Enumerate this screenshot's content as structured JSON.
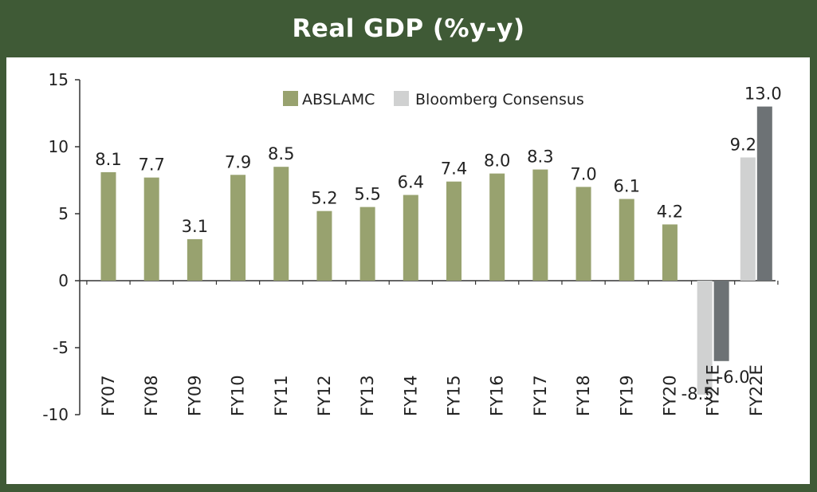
{
  "chart_data": {
    "type": "bar",
    "title": "Real GDP (%y-y)",
    "categories": [
      "FY07",
      "FY08",
      "FY09",
      "FY10",
      "FY11",
      "FY12",
      "FY13",
      "FY14",
      "FY15",
      "FY16",
      "FY17",
      "FY18",
      "FY19",
      "FY20",
      "FY21E",
      "FY22E"
    ],
    "ylim": [
      -10,
      15
    ],
    "yticks": [
      15,
      10,
      5,
      0,
      -5,
      -10
    ],
    "series": [
      {
        "name": "ABSLAMC",
        "values": [
          8.1,
          7.7,
          3.1,
          7.9,
          8.5,
          5.2,
          5.5,
          6.4,
          7.4,
          8.0,
          8.3,
          7.0,
          6.1,
          4.2,
          -6.0,
          13.0
        ],
        "labels": [
          "8.1",
          "7.7",
          "3.1",
          "7.9",
          "8.5",
          "5.2",
          "5.5",
          "6.4",
          "7.4",
          "8.0",
          "8.3",
          "7.0",
          "6.1",
          "4.2",
          "-6.0",
          "13.0"
        ],
        "color": "#98a26f",
        "forecast_color": "#6d7275"
      },
      {
        "name": "Bloomberg Consensus",
        "values": [
          null,
          null,
          null,
          null,
          null,
          null,
          null,
          null,
          null,
          null,
          null,
          null,
          null,
          null,
          -8.5,
          9.2
        ],
        "labels": [
          "",
          "",
          "",
          "",
          "",
          "",
          "",
          "",
          "",
          "",
          "",
          "",
          "",
          "",
          "-8.5",
          "9.2"
        ],
        "color": "#d0d1d1"
      }
    ],
    "legend_position": "top-center",
    "grid": false,
    "colors": {
      "header_bg": "#3f5a36",
      "axis": "#333333"
    }
  }
}
